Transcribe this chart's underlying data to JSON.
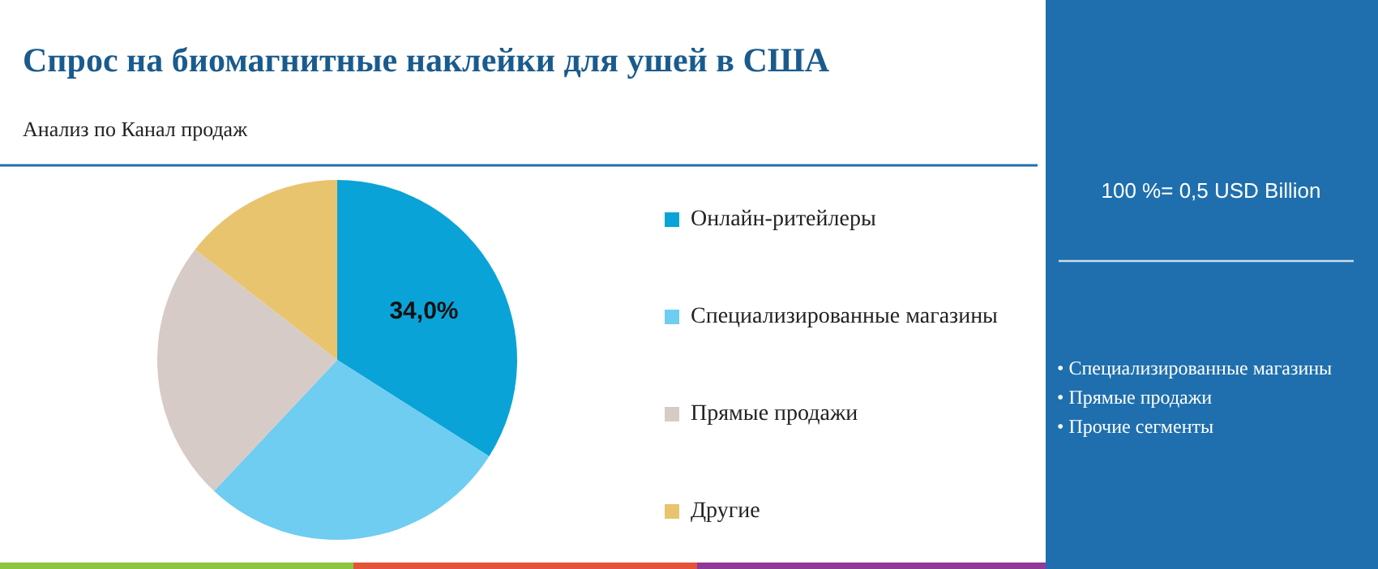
{
  "chart_data": {
    "type": "pie",
    "title": "Спрос на биомагнитные наклейки для ушей в США",
    "subtitle": "Анализ по Канал продаж",
    "categories": [
      "Онлайн-ритейлеры",
      "Специализированные магазины",
      "Прямые продажи",
      "Другие"
    ],
    "values": [
      34,
      28,
      23.5,
      14.5
    ],
    "colors": [
      "#0aa3d8",
      "#6ecdf0",
      "#d6cbc6",
      "#e9c46f"
    ],
    "value_labels": [
      "34,0%",
      null,
      null,
      null
    ],
    "legend": "right",
    "annotations": [
      "100 %= 0,5 USD Billion",
      "• Специализированные магазины",
      "• Прямые продажи",
      "• Прочие сегменты"
    ]
  }
}
